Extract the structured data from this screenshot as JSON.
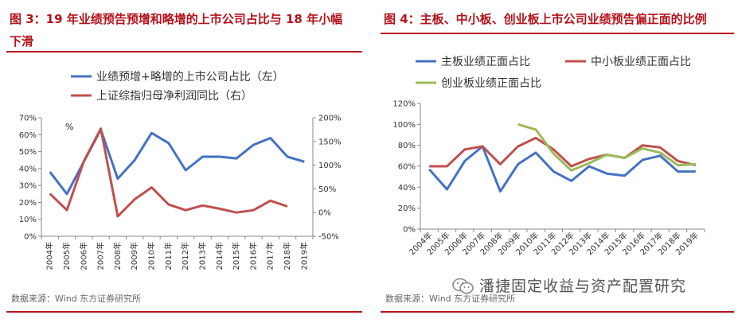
{
  "colors": {
    "blue": "#4472c4",
    "red": "#c0504d",
    "green": "#9bbb59",
    "accent": "#b5121b"
  },
  "left": {
    "title_line1": "图 3：19 年业绩预告预增和略增的上市公司占比与 18 年小幅",
    "title_line2": "下滑",
    "source": "数据来源：Wind 东方证券研究所"
  },
  "right": {
    "title": "图 4：主板、中小板、创业板上市公司业绩预告偏正面的比例",
    "source": "数据来源：Wind 东方证券研究所"
  },
  "watermark": {
    "text": "潘捷固定收益与资产配置研究",
    "icon": "wechat-icon"
  },
  "chart_data": [
    {
      "type": "line",
      "unit_label": "%",
      "categories": [
        "2004年",
        "2005年",
        "2006年",
        "2007年",
        "2008年",
        "2009年",
        "2010年",
        "2011年",
        "2012年",
        "2013年",
        "2014年",
        "2015年",
        "2016年",
        "2017年",
        "2018年",
        "2019年"
      ],
      "y_left": {
        "min": 0,
        "max": 70,
        "step": 10,
        "ticks": [
          "0%",
          "10%",
          "20%",
          "30%",
          "40%",
          "50%",
          "60%",
          "70%"
        ]
      },
      "y_right": {
        "min": -50,
        "max": 200,
        "step": 50,
        "ticks": [
          "-50%",
          "0%",
          "50%",
          "100%",
          "150%",
          "200%"
        ]
      },
      "series": [
        {
          "name": "业绩预增+略增的上市公司占比（左）",
          "axis": "left",
          "color": "#4472c4",
          "values": [
            38,
            25,
            44,
            63,
            34,
            45,
            61,
            55,
            39,
            47,
            47,
            46,
            54,
            58,
            47,
            44
          ]
        },
        {
          "name": "上证综指归母净利润同比（右）",
          "axis": "right",
          "color": "#c0504d",
          "values": [
            40,
            5,
            108,
            177,
            -8,
            28,
            53,
            17,
            5,
            15,
            8,
            0,
            5,
            25,
            13,
            null
          ]
        }
      ]
    },
    {
      "type": "line",
      "categories": [
        "2004年",
        "2005年",
        "2006年",
        "2007年",
        "2008年",
        "2009年",
        "2010年",
        "2011年",
        "2012年",
        "2013年",
        "2014年",
        "2015年",
        "2016年",
        "2017年",
        "2018年",
        "2019年"
      ],
      "y": {
        "min": 0,
        "max": 120,
        "step": 20,
        "ticks": [
          "0%",
          "20%",
          "40%",
          "60%",
          "80%",
          "100%",
          "120%"
        ]
      },
      "series": [
        {
          "name": "主板业绩正面占比",
          "color": "#4472c4",
          "values": [
            57,
            38,
            65,
            79,
            36,
            62,
            73,
            55,
            46,
            60,
            53,
            51,
            66,
            70,
            55,
            55
          ]
        },
        {
          "name": "中小板业绩正面占比",
          "color": "#c0504d",
          "values": [
            60,
            60,
            76,
            79,
            62,
            79,
            87,
            76,
            60,
            67,
            71,
            68,
            80,
            78,
            65,
            61
          ]
        },
        {
          "name": "创业板业绩正面占比",
          "color": "#9bbb59",
          "values": [
            null,
            null,
            null,
            null,
            null,
            100,
            95,
            72,
            56,
            63,
            71,
            68,
            77,
            73,
            61,
            62
          ]
        }
      ]
    }
  ]
}
